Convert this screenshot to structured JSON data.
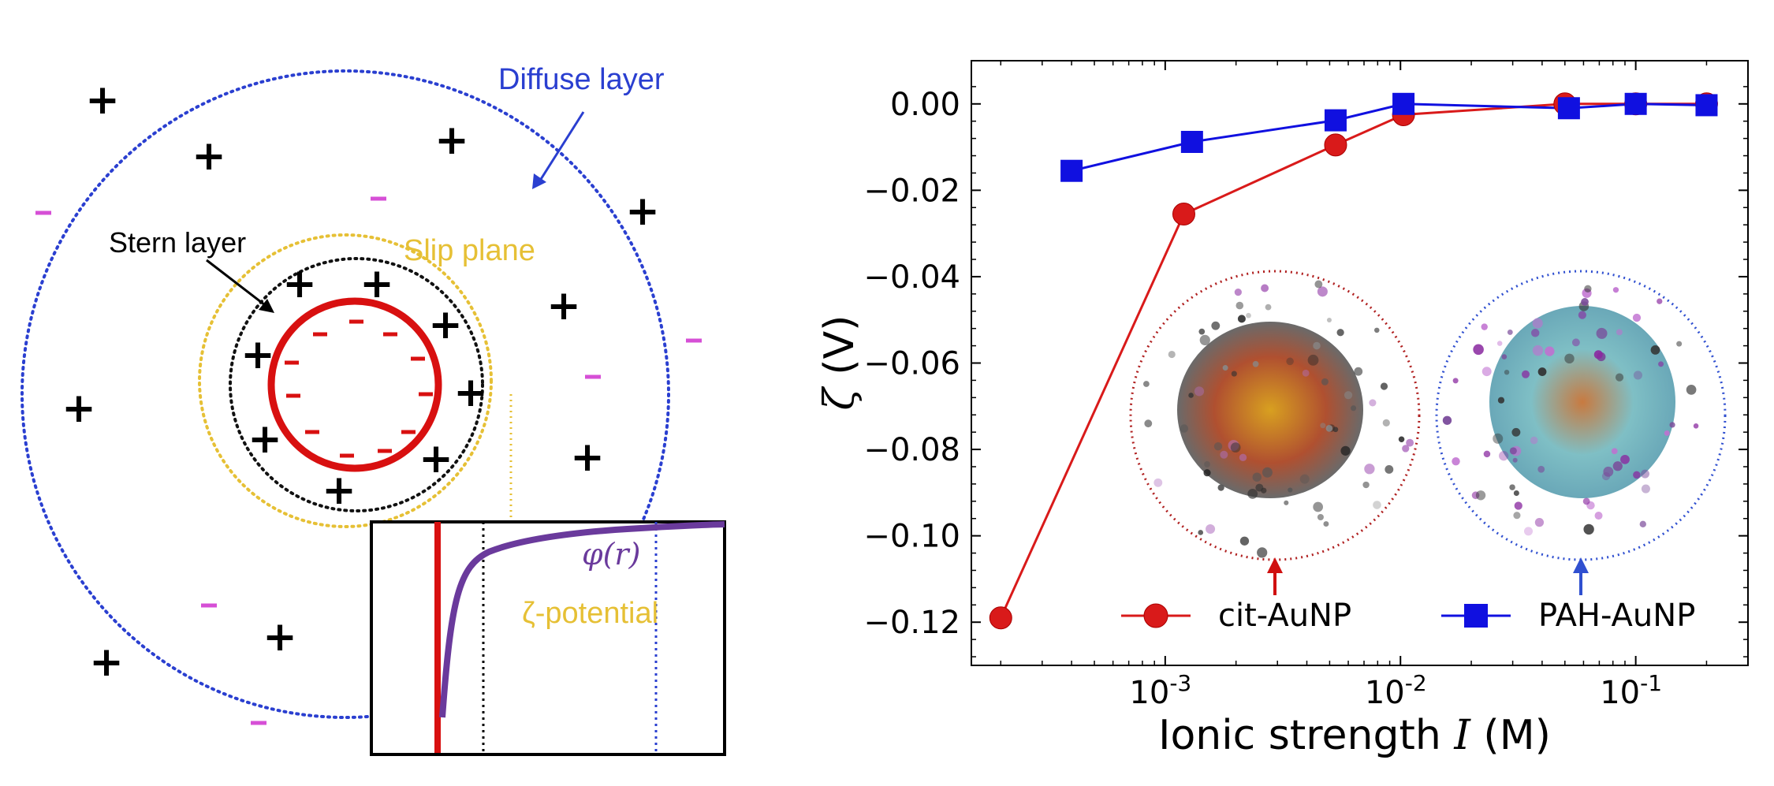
{
  "diagram": {
    "labels": {
      "diffuse_layer": "Diffuse layer",
      "stern_layer": "Stern layer",
      "slip_plane": "Slip plane",
      "zeta_potential": "ζ-potential",
      "phi_r": "φ(r)"
    },
    "symbols": {
      "plus": "+",
      "minus": "−"
    },
    "colors": {
      "diffuse": "#2a3fd0",
      "stern": "#111111",
      "slip": "#e6c035",
      "particle": "#d81010",
      "potential_curve": "#6a3a9c",
      "free_anion": "#d64fd6"
    }
  },
  "chart_data": {
    "type": "line",
    "xscale": "log",
    "xlabel": "Ionic strength I (M)",
    "ylabel": "ζ (V)",
    "xlim": [
      0.00015,
      0.3
    ],
    "ylim": [
      -0.13,
      0.01
    ],
    "x_ticks": [
      {
        "value": 0.001,
        "base": "10",
        "exp": "-3"
      },
      {
        "value": 0.01,
        "base": "10",
        "exp": "-2"
      },
      {
        "value": 0.1,
        "base": "10",
        "exp": "-1"
      }
    ],
    "y_ticks": [
      {
        "value": 0.0,
        "label": "0.00"
      },
      {
        "value": -0.02,
        "label": "−0.02"
      },
      {
        "value": -0.04,
        "label": "−0.04"
      },
      {
        "value": -0.06,
        "label": "−0.06"
      },
      {
        "value": -0.08,
        "label": "−0.08"
      },
      {
        "value": -0.1,
        "label": "−0.10"
      },
      {
        "value": -0.12,
        "label": "−0.12"
      }
    ],
    "series": [
      {
        "name": "cit-AuNP",
        "color": "#d91a1a",
        "marker": "circle",
        "points": [
          [
            0.0002,
            -0.119
          ],
          [
            0.0012,
            -0.0255
          ],
          [
            0.0053,
            -0.0095
          ],
          [
            0.0103,
            -0.0025
          ],
          [
            0.05,
            0.0
          ],
          [
            0.1,
            0.0
          ],
          [
            0.2,
            0.0
          ]
        ]
      },
      {
        "name": "PAH-AuNP",
        "color": "#1010e0",
        "marker": "square",
        "points": [
          [
            0.0004,
            -0.0155
          ],
          [
            0.0013,
            -0.0088
          ],
          [
            0.0053,
            -0.0038
          ],
          [
            0.0103,
            0.0
          ],
          [
            0.052,
            -0.001
          ],
          [
            0.1,
            0.0
          ],
          [
            0.2,
            -0.0003
          ]
        ]
      }
    ],
    "legend": {
      "placement": "bottom-right",
      "ncol": 2
    },
    "insets": [
      {
        "name": "cit-AuNP snapshot",
        "color": "#b02020"
      },
      {
        "name": "PAH-AuNP snapshot",
        "color": "#3050d0"
      }
    ]
  }
}
